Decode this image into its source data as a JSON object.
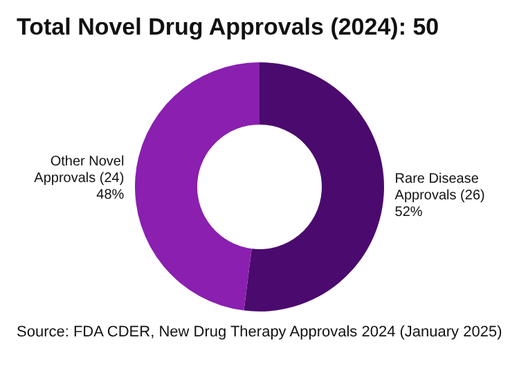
{
  "chart_data": {
    "type": "donut",
    "title": "Total Novel Drug Approvals (2024): 50",
    "categories": [
      "Rare Disease Approvals (26)",
      "Other Novel Approvals (24)"
    ],
    "values": [
      52,
      48
    ],
    "value_labels": [
      "52%",
      "48%"
    ],
    "colors": [
      "#4b0a6e",
      "#8a1fb0"
    ],
    "annotations": [
      "Source: FDA CDER, New Drug Therapy Approvals 2024 (January 2025)"
    ]
  }
}
